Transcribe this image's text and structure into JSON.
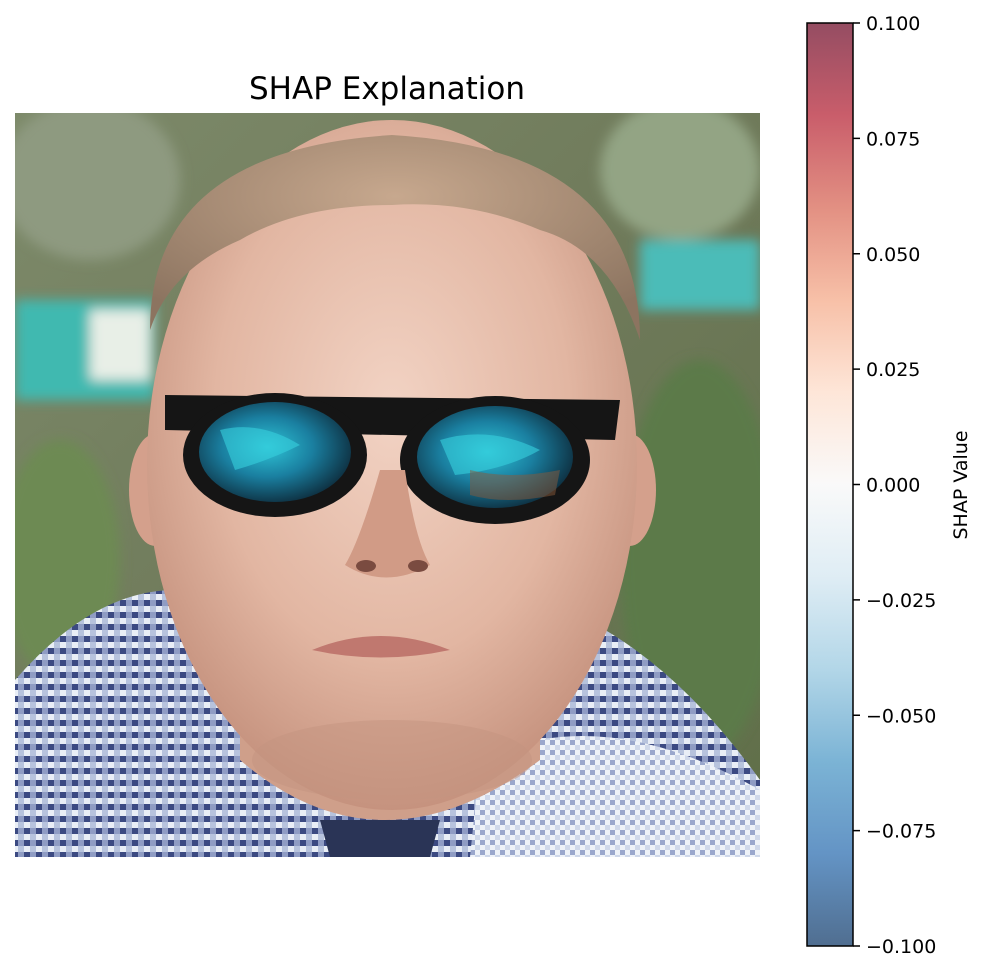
{
  "chart_data": {
    "type": "heatmap",
    "title": "SHAP Explanation",
    "image": {
      "subject": "photo of a man wearing dark sunglasses with blue reflective lenses and a blue-and-white checked shirt, blurred green foliage background",
      "axes_visible": false
    },
    "overlay": {
      "shap_overlay_visible": false,
      "alpha": 0.7
    },
    "colorbar": {
      "label": "SHAP Value",
      "colormap": "RdBu_r",
      "vmin": -0.1,
      "vmax": 0.1,
      "ticks": [
        -0.1,
        -0.075,
        -0.05,
        -0.025,
        0.0,
        0.025,
        0.05,
        0.075,
        0.1
      ],
      "tick_labels": [
        "−0.100",
        "−0.075",
        "−0.050",
        "−0.025",
        "0.000",
        "0.025",
        "0.050",
        "0.075",
        "0.100"
      ],
      "alpha": 0.7,
      "orientation": "vertical",
      "position": "right"
    }
  },
  "colors": {
    "cmap_stops": [
      "#053061",
      "#2166ac",
      "#4393c3",
      "#92c5de",
      "#d1e5f0",
      "#f7f7f7",
      "#fddbc7",
      "#f4a582",
      "#d6604d",
      "#b2182b",
      "#67001f"
    ]
  }
}
